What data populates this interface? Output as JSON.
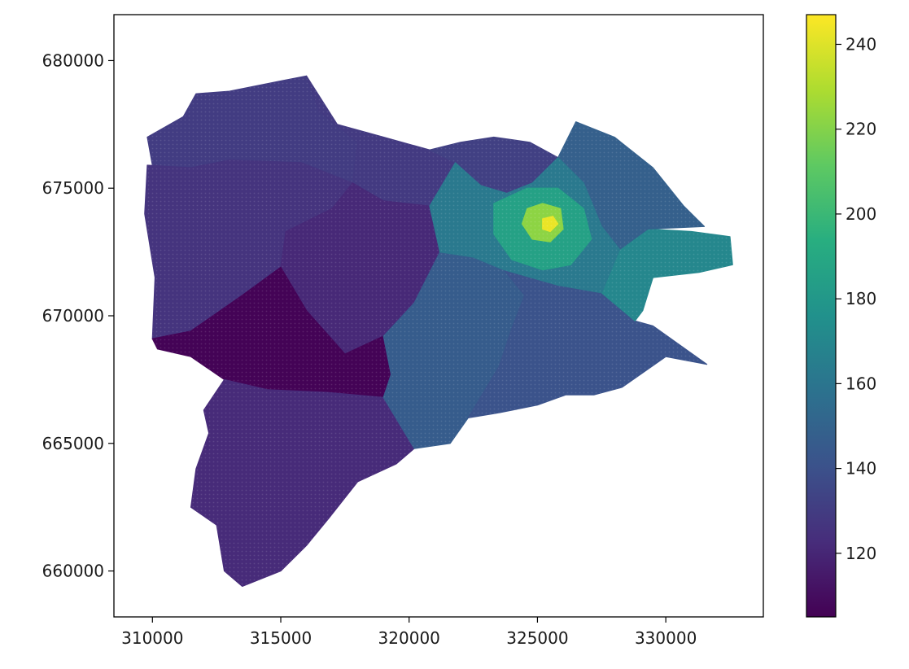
{
  "chart_data": {
    "type": "heatmap",
    "subtype": "choropleth-hexbin-map",
    "title": "",
    "xlabel": "",
    "ylabel": "",
    "xlim": [
      308500,
      333800
    ],
    "ylim": [
      658200,
      681800
    ],
    "x_ticks": [
      310000,
      315000,
      320000,
      325000,
      330000
    ],
    "x_tick_labels": [
      "310000",
      "315000",
      "320000",
      "325000",
      "330000"
    ],
    "y_ticks": [
      660000,
      665000,
      670000,
      675000,
      680000
    ],
    "y_tick_labels": [
      "660000",
      "665000",
      "670000",
      "675000",
      "680000"
    ],
    "colormap": "viridis",
    "color_range": [
      105,
      247
    ],
    "colorbar_ticks": [
      120,
      140,
      160,
      180,
      200,
      220,
      240
    ],
    "colorbar_tick_labels": [
      "120",
      "140",
      "160",
      "180",
      "200",
      "220",
      "240"
    ],
    "grid": false,
    "legend": "colorbar-right",
    "regions": [
      {
        "id": "northwest",
        "value": 130,
        "polygon": [
          [
            309800,
            677000
          ],
          [
            311200,
            677800
          ],
          [
            311700,
            678700
          ],
          [
            313000,
            678800
          ],
          [
            315000,
            679200
          ],
          [
            316000,
            679400
          ],
          [
            316500,
            678000
          ],
          [
            317500,
            677200
          ],
          [
            318000,
            676800
          ],
          [
            317800,
            675200
          ],
          [
            316500,
            675200
          ],
          [
            315800,
            676000
          ],
          [
            313000,
            676100
          ],
          [
            311500,
            675800
          ],
          [
            310000,
            675900
          ],
          [
            309800,
            677000
          ]
        ]
      },
      {
        "id": "north-central",
        "value": 129,
        "polygon": [
          [
            316000,
            679400
          ],
          [
            317200,
            677500
          ],
          [
            319000,
            677000
          ],
          [
            320800,
            676500
          ],
          [
            321800,
            676000
          ],
          [
            321500,
            675000
          ],
          [
            320800,
            674300
          ],
          [
            319000,
            674500
          ],
          [
            317800,
            675200
          ],
          [
            318000,
            676800
          ],
          [
            316500,
            678000
          ]
        ]
      },
      {
        "id": "west",
        "value": 126,
        "polygon": [
          [
            309800,
            675900
          ],
          [
            311500,
            675800
          ],
          [
            313000,
            676100
          ],
          [
            315800,
            676000
          ],
          [
            317800,
            675200
          ],
          [
            317000,
            674200
          ],
          [
            315200,
            673300
          ],
          [
            315000,
            671900
          ],
          [
            313500,
            670800
          ],
          [
            311500,
            669400
          ],
          [
            310000,
            669100
          ],
          [
            310100,
            671500
          ],
          [
            309700,
            674000
          ]
        ]
      },
      {
        "id": "central-north",
        "value": 121,
        "polygon": [
          [
            317800,
            675200
          ],
          [
            319000,
            674500
          ],
          [
            320800,
            674300
          ],
          [
            321200,
            672500
          ],
          [
            320200,
            670500
          ],
          [
            319000,
            669200
          ],
          [
            317500,
            668500
          ],
          [
            316000,
            670200
          ],
          [
            315000,
            671900
          ],
          [
            315200,
            673300
          ],
          [
            317000,
            674200
          ]
        ]
      },
      {
        "id": "southwest-dark",
        "value": 106,
        "polygon": [
          [
            310000,
            669100
          ],
          [
            311500,
            669400
          ],
          [
            313500,
            670800
          ],
          [
            315000,
            671900
          ],
          [
            316000,
            670200
          ],
          [
            317500,
            668500
          ],
          [
            319000,
            669200
          ],
          [
            319300,
            667700
          ],
          [
            319000,
            666800
          ],
          [
            316800,
            667000
          ],
          [
            314500,
            667100
          ],
          [
            312800,
            667500
          ],
          [
            311500,
            668400
          ],
          [
            310200,
            668700
          ]
        ]
      },
      {
        "id": "south",
        "value": 122,
        "polygon": [
          [
            312800,
            667500
          ],
          [
            314500,
            667100
          ],
          [
            316800,
            667000
          ],
          [
            319000,
            666800
          ],
          [
            320200,
            664800
          ],
          [
            319500,
            664200
          ],
          [
            318000,
            663500
          ],
          [
            316900,
            662100
          ],
          [
            316000,
            661000
          ],
          [
            315000,
            660000
          ],
          [
            313500,
            659400
          ],
          [
            312800,
            660000
          ],
          [
            312500,
            661800
          ],
          [
            311500,
            662500
          ],
          [
            311700,
            664000
          ],
          [
            312200,
            665400
          ],
          [
            312000,
            666300
          ]
        ]
      },
      {
        "id": "central-east",
        "value": 146,
        "polygon": [
          [
            319000,
            669200
          ],
          [
            320200,
            670500
          ],
          [
            321200,
            672500
          ],
          [
            322500,
            672300
          ],
          [
            323700,
            671800
          ],
          [
            324500,
            670800
          ],
          [
            324000,
            669500
          ],
          [
            323500,
            668000
          ],
          [
            322300,
            666000
          ],
          [
            321600,
            665000
          ],
          [
            320200,
            664800
          ],
          [
            319000,
            666800
          ],
          [
            319300,
            667700
          ]
        ]
      },
      {
        "id": "east-south",
        "value": 141,
        "polygon": [
          [
            323700,
            671800
          ],
          [
            325800,
            671200
          ],
          [
            327500,
            670900
          ],
          [
            328800,
            669800
          ],
          [
            329500,
            669600
          ],
          [
            331600,
            668100
          ],
          [
            330000,
            668400
          ],
          [
            328300,
            667200
          ],
          [
            327200,
            666900
          ],
          [
            326100,
            666900
          ],
          [
            325000,
            666500
          ],
          [
            323500,
            666200
          ],
          [
            322300,
            666000
          ],
          [
            323500,
            668000
          ],
          [
            324000,
            669500
          ],
          [
            324500,
            670800
          ]
        ]
      },
      {
        "id": "east",
        "value": 170,
        "polygon": [
          [
            327500,
            670900
          ],
          [
            328200,
            672600
          ],
          [
            329300,
            673400
          ],
          [
            331000,
            673300
          ],
          [
            332500,
            673100
          ],
          [
            332600,
            672000
          ],
          [
            331300,
            671700
          ],
          [
            329500,
            671500
          ],
          [
            329100,
            670200
          ],
          [
            328800,
            669800
          ]
        ]
      },
      {
        "id": "northeast",
        "value": 148,
        "polygon": [
          [
            325800,
            676200
          ],
          [
            326500,
            677600
          ],
          [
            328000,
            677000
          ],
          [
            329500,
            675800
          ],
          [
            330700,
            674300
          ],
          [
            331500,
            673500
          ],
          [
            329300,
            673400
          ],
          [
            328200,
            672600
          ],
          [
            327500,
            673500
          ],
          [
            326800,
            675200
          ]
        ]
      },
      {
        "id": "north-inner",
        "value": 132,
        "polygon": [
          [
            320800,
            676500
          ],
          [
            322000,
            676800
          ],
          [
            323300,
            677000
          ],
          [
            324700,
            676800
          ],
          [
            325800,
            676200
          ],
          [
            324800,
            675200
          ],
          [
            323800,
            674800
          ],
          [
            322800,
            675100
          ],
          [
            321800,
            676000
          ]
        ]
      },
      {
        "id": "inner-ring",
        "value": 162,
        "polygon": [
          [
            321800,
            676000
          ],
          [
            322800,
            675100
          ],
          [
            323800,
            674800
          ],
          [
            324800,
            675200
          ],
          [
            325800,
            676200
          ],
          [
            326800,
            675200
          ],
          [
            327500,
            673500
          ],
          [
            328200,
            672600
          ],
          [
            327500,
            670900
          ],
          [
            325800,
            671200
          ],
          [
            323700,
            671800
          ],
          [
            322500,
            672300
          ],
          [
            321200,
            672500
          ],
          [
            320800,
            674300
          ]
        ]
      },
      {
        "id": "inner-core",
        "value": 186,
        "polygon": [
          [
            323300,
            674400
          ],
          [
            324600,
            675000
          ],
          [
            325800,
            675000
          ],
          [
            326800,
            674200
          ],
          [
            327100,
            673000
          ],
          [
            326300,
            672000
          ],
          [
            325200,
            671800
          ],
          [
            324000,
            672200
          ],
          [
            323300,
            673200
          ]
        ]
      },
      {
        "id": "city-centre",
        "value": 222,
        "polygon": [
          [
            324600,
            674200
          ],
          [
            325200,
            674400
          ],
          [
            325900,
            674200
          ],
          [
            326000,
            673400
          ],
          [
            325500,
            672900
          ],
          [
            324800,
            673000
          ],
          [
            324400,
            673600
          ]
        ]
      },
      {
        "id": "centre-peak",
        "value": 243,
        "polygon": [
          [
            325200,
            673800
          ],
          [
            325600,
            673900
          ],
          [
            325800,
            673600
          ],
          [
            325500,
            673300
          ],
          [
            325200,
            673400
          ]
        ]
      }
    ]
  }
}
